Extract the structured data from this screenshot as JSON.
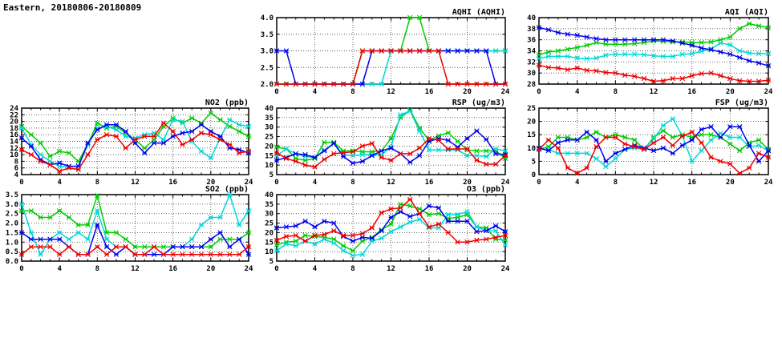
{
  "page_title": "Eastern, 20180806-20180809",
  "colors": {
    "red": "#ee0000",
    "blue": "#0000ee",
    "green": "#00cc00",
    "cyan": "#00d8d8",
    "axis": "#000000",
    "grid": "#555555"
  },
  "chart_data": {
    "note": "see charts[] — 7 line charts, hourly values x=0..24"
  },
  "charts": [
    {
      "id": "aqhi",
      "type": "line",
      "title": "AQHI (AQHI)",
      "x": {
        "min": 0,
        "max": 24,
        "ticks": [
          0,
          4,
          8,
          12,
          16,
          20,
          24
        ]
      },
      "y": {
        "min": 2,
        "max": 4,
        "step": 0.5,
        "decimals": 1
      },
      "series": [
        {
          "name": "green",
          "color": "green",
          "values": [
            2,
            2,
            2,
            2,
            2,
            2,
            2,
            2,
            2,
            3,
            3,
            3,
            3,
            3,
            4,
            4,
            3,
            3,
            3,
            3,
            3,
            3,
            3,
            3,
            3
          ]
        },
        {
          "name": "cyan",
          "color": "cyan",
          "values": [
            2,
            2,
            2,
            2,
            2,
            2,
            2,
            2,
            2,
            2,
            2,
            2,
            3,
            3,
            3,
            3,
            3,
            3,
            3,
            3,
            3,
            3,
            3,
            3,
            3
          ]
        },
        {
          "name": "blue",
          "color": "blue",
          "values": [
            3,
            3,
            2,
            2,
            2,
            2,
            2,
            2,
            2,
            2,
            3,
            3,
            3,
            3,
            3,
            3,
            3,
            3,
            3,
            3,
            3,
            3,
            3,
            2,
            2
          ]
        },
        {
          "name": "red",
          "color": "red",
          "values": [
            2,
            2,
            2,
            2,
            2,
            2,
            2,
            2,
            2,
            3,
            3,
            3,
            3,
            3,
            3,
            3,
            3,
            3,
            2,
            2,
            2,
            2,
            2,
            2,
            2
          ]
        }
      ]
    },
    {
      "id": "aqi",
      "type": "line",
      "title": "AQI (AQI)",
      "x": {
        "min": 0,
        "max": 24,
        "ticks": [
          0,
          4,
          8,
          12,
          16,
          20,
          24
        ]
      },
      "y": {
        "min": 28,
        "max": 40,
        "step": 2,
        "decimals": 0
      },
      "series": [
        {
          "name": "green",
          "color": "green",
          "values": [
            33.3,
            33.8,
            34,
            34.3,
            34.6,
            35,
            35.5,
            35.2,
            35.2,
            35.2,
            35.3,
            35.5,
            35.8,
            35.7,
            35.6,
            35.6,
            35.5,
            35.5,
            35.6,
            36,
            36.5,
            38,
            38.9,
            38.5,
            38.2
          ]
        },
        {
          "name": "cyan",
          "color": "cyan",
          "values": [
            32.6,
            33,
            33,
            33,
            32.7,
            32.6,
            32.7,
            33.2,
            33.4,
            33.4,
            33.4,
            33.3,
            33.1,
            33,
            33,
            33.4,
            33.5,
            33.9,
            34.4,
            35.4,
            35.1,
            34,
            33.6,
            33.5,
            33.5
          ]
        },
        {
          "name": "blue",
          "color": "blue",
          "values": [
            38.2,
            37.8,
            37.3,
            37,
            36.8,
            36.5,
            36.2,
            36,
            36,
            36,
            36,
            36,
            36,
            36,
            35.8,
            35.4,
            35,
            34.5,
            34.2,
            33.8,
            33.4,
            32.8,
            32.2,
            31.8,
            31.3
          ]
        },
        {
          "name": "red",
          "color": "red",
          "values": [
            31.4,
            31,
            30.9,
            30.6,
            30.9,
            30.5,
            30.4,
            30.1,
            30,
            29.6,
            29.4,
            29,
            28.5,
            28.6,
            29,
            29,
            29.5,
            29.9,
            30,
            29.5,
            29,
            28.6,
            28.5,
            28.5,
            28.7
          ]
        }
      ]
    },
    {
      "id": "no2",
      "type": "line",
      "title": "NO2 (ppb)",
      "x": {
        "min": 0,
        "max": 24,
        "ticks": [
          0,
          4,
          8,
          12,
          16,
          20,
          24
        ]
      },
      "y": {
        "min": 4,
        "max": 24,
        "step": 2,
        "decimals": 0
      },
      "series": [
        {
          "name": "green",
          "color": "green",
          "values": [
            18.5,
            16,
            13.5,
            9.5,
            11,
            10.5,
            8,
            13,
            19.5,
            18,
            18.5,
            16.5,
            14.5,
            12,
            14.5,
            18.5,
            21,
            19.5,
            21,
            19.5,
            22.5,
            20.5,
            18.5,
            17,
            15.5
          ]
        },
        {
          "name": "cyan",
          "color": "cyan",
          "values": [
            18,
            13,
            10,
            8,
            6.5,
            6.5,
            6.5,
            13,
            18,
            18.5,
            17.5,
            15.5,
            15,
            16,
            16.5,
            14.5,
            20.5,
            20,
            14,
            11,
            9,
            15,
            20.5,
            19,
            18.5
          ]
        },
        {
          "name": "blue",
          "color": "blue",
          "values": [
            15,
            12.5,
            8.5,
            7,
            7.5,
            6.5,
            6.5,
            13.5,
            17.5,
            19,
            19,
            17,
            13.5,
            10.5,
            13.5,
            13.5,
            15.5,
            16.5,
            17,
            19,
            17,
            15.5,
            12,
            11.5,
            10.5
          ]
        },
        {
          "name": "red",
          "color": "red",
          "values": [
            11.5,
            10,
            8,
            7,
            5,
            6,
            5.5,
            10,
            14.5,
            16,
            15.5,
            12,
            14.5,
            15.5,
            15.5,
            19.5,
            17,
            13,
            14.5,
            16.5,
            16,
            14.5,
            13,
            10.5,
            11
          ]
        }
      ]
    },
    {
      "id": "rsp",
      "type": "line",
      "title": "RSP (ug/m3)",
      "x": {
        "min": 0,
        "max": 24,
        "ticks": [
          0,
          4,
          8,
          12,
          16,
          20,
          24
        ]
      },
      "y": {
        "min": 5,
        "max": 40,
        "step": 5,
        "decimals": 0
      },
      "series": [
        {
          "name": "green",
          "color": "green",
          "values": [
            19.5,
            18.5,
            13.5,
            12.5,
            13.5,
            22,
            22,
            17.5,
            17.5,
            17,
            17,
            17.5,
            24,
            35,
            39,
            29.5,
            23,
            25.5,
            27,
            22.5,
            18,
            17.5,
            17.5,
            17.5,
            13.5
          ]
        },
        {
          "name": "cyan",
          "color": "cyan",
          "values": [
            15,
            18.5,
            16,
            14.5,
            14,
            18,
            21.5,
            15.5,
            15,
            15.5,
            15.5,
            15.5,
            19.5,
            36.5,
            38.5,
            28,
            18,
            18,
            18,
            18,
            15,
            15,
            14.5,
            18.5,
            17.5
          ]
        },
        {
          "name": "blue",
          "color": "blue",
          "values": [
            12.5,
            14,
            16,
            15.5,
            14,
            17.5,
            21.5,
            14.5,
            11,
            12,
            15,
            17.5,
            19,
            16,
            11.5,
            15,
            22.5,
            24,
            23,
            19.5,
            24,
            28,
            23.5,
            16,
            15.5
          ]
        },
        {
          "name": "red",
          "color": "red",
          "values": [
            16.5,
            13.5,
            12,
            10,
            9,
            13,
            16,
            16.5,
            17,
            20,
            21.5,
            14,
            12.5,
            16,
            16,
            19,
            24,
            23,
            18.5,
            18.5,
            18.5,
            12.5,
            10.5,
            10.5,
            15
          ]
        }
      ]
    },
    {
      "id": "fsp",
      "type": "line",
      "title": "FSP (ug/m3)",
      "x": {
        "min": 0,
        "max": 24,
        "ticks": [
          0,
          4,
          8,
          12,
          16,
          20,
          24
        ]
      },
      "y": {
        "min": 0,
        "max": 25,
        "step": 5,
        "decimals": 0
      },
      "series": [
        {
          "name": "green",
          "color": "green",
          "values": [
            9.5,
            10.5,
            14,
            14,
            13,
            14,
            16,
            14,
            15,
            14,
            13,
            9.5,
            14,
            16.5,
            14,
            15,
            14,
            15,
            15,
            14,
            11.5,
            9,
            12,
            13,
            9.5
          ]
        },
        {
          "name": "cyan",
          "color": "cyan",
          "values": [
            9.5,
            9.5,
            8,
            8,
            8,
            8,
            6,
            3,
            6,
            9.5,
            10,
            9.5,
            13.5,
            18.5,
            21,
            14.5,
            5,
            9,
            13,
            15.5,
            14,
            14,
            10.5,
            11,
            9
          ]
        },
        {
          "name": "blue",
          "color": "blue",
          "values": [
            10,
            9,
            12,
            13,
            13,
            16,
            13,
            5,
            8,
            9.5,
            11,
            10,
            9,
            10,
            8,
            11,
            13,
            17,
            18,
            14,
            18,
            18,
            11,
            5,
            9
          ]
        },
        {
          "name": "red",
          "color": "red",
          "values": [
            9.5,
            13,
            10,
            2.5,
            0.5,
            2.5,
            10.5,
            14,
            14,
            11.5,
            10.5,
            9.5,
            12,
            14,
            11,
            14.5,
            16,
            12,
            6.5,
            5,
            4,
            0.5,
            2.5,
            8,
            6.5
          ]
        }
      ]
    },
    {
      "id": "so2",
      "type": "line",
      "title": "SO2 (ppb)",
      "x": {
        "min": 0,
        "max": 24,
        "ticks": [
          0,
          4,
          8,
          12,
          16,
          20,
          24
        ]
      },
      "y": {
        "min": 0,
        "max": 3.5,
        "step": 0.5,
        "decimals": 1
      },
      "series": [
        {
          "name": "green",
          "color": "green",
          "values": [
            2.65,
            2.65,
            2.3,
            2.3,
            2.65,
            2.3,
            1.9,
            1.9,
            3.45,
            1.5,
            1.5,
            1.15,
            0.75,
            0.75,
            0.75,
            0.75,
            0.75,
            0.75,
            0.75,
            0.75,
            0.75,
            1.15,
            1.15,
            1.15,
            1.5
          ]
        },
        {
          "name": "cyan",
          "color": "cyan",
          "values": [
            3,
            1.5,
            0.35,
            1.15,
            1.5,
            1.15,
            1.5,
            1.15,
            2.65,
            1.15,
            0.75,
            0.75,
            0.35,
            0.35,
            0.35,
            0.35,
            0.75,
            0.75,
            1.15,
            1.9,
            2.3,
            2.3,
            3.5,
            1.9,
            2.65
          ]
        },
        {
          "name": "blue",
          "color": "blue",
          "values": [
            1.5,
            1.15,
            1.15,
            1.15,
            1.15,
            0.75,
            0.35,
            0.35,
            1.9,
            0.75,
            0.35,
            0.75,
            0.35,
            0.35,
            0.35,
            0.35,
            0.75,
            0.75,
            0.75,
            0.75,
            1.15,
            1.5,
            0.75,
            1.15,
            0.35
          ]
        },
        {
          "name": "red",
          "color": "red",
          "values": [
            0.35,
            0.75,
            0.75,
            0.75,
            0.35,
            0.75,
            0.35,
            0.35,
            0.75,
            0.35,
            0.75,
            0.75,
            0.35,
            0.35,
            0.75,
            0.35,
            0.35,
            0.35,
            0.35,
            0.35,
            0.35,
            0.35,
            0.35,
            0.35,
            0.75
          ]
        }
      ]
    },
    {
      "id": "o3",
      "type": "line",
      "title": "O3 (ppb)",
      "x": {
        "min": 0,
        "max": 24,
        "ticks": [
          0,
          4,
          8,
          12,
          16,
          20,
          24
        ]
      },
      "y": {
        "min": 5,
        "max": 40,
        "step": 5,
        "decimals": 0
      },
      "series": [
        {
          "name": "green",
          "color": "green",
          "values": [
            13.5,
            15,
            15.5,
            18.5,
            18,
            17.5,
            16.5,
            13,
            10.5,
            15.5,
            17.5,
            21.5,
            24.5,
            35,
            34,
            32.5,
            29.5,
            30,
            27.5,
            28,
            29.5,
            23,
            22.5,
            16.5,
            16
          ]
        },
        {
          "name": "cyan",
          "color": "cyan",
          "values": [
            10.5,
            14,
            13,
            15.5,
            14,
            16.5,
            14.5,
            10.5,
            8,
            8.5,
            15.5,
            17,
            20.5,
            23,
            25.5,
            27,
            22.5,
            22.5,
            29.5,
            29.5,
            31,
            23,
            21,
            21,
            13.5
          ]
        },
        {
          "name": "blue",
          "color": "blue",
          "values": [
            22.5,
            23,
            23.5,
            26,
            23,
            26,
            25,
            18,
            15.5,
            17.5,
            17,
            21,
            28,
            31,
            28.5,
            30,
            34,
            33,
            26,
            26,
            26,
            20.5,
            21,
            23.5,
            20.5
          ]
        },
        {
          "name": "red",
          "color": "red",
          "values": [
            16,
            18,
            18.5,
            15.5,
            18.5,
            19,
            21,
            18.5,
            18.5,
            19.5,
            22.5,
            30.5,
            32.5,
            33,
            37.5,
            30,
            23,
            24.5,
            20,
            15,
            15,
            16,
            16.5,
            17.5,
            18.5
          ]
        }
      ]
    }
  ]
}
